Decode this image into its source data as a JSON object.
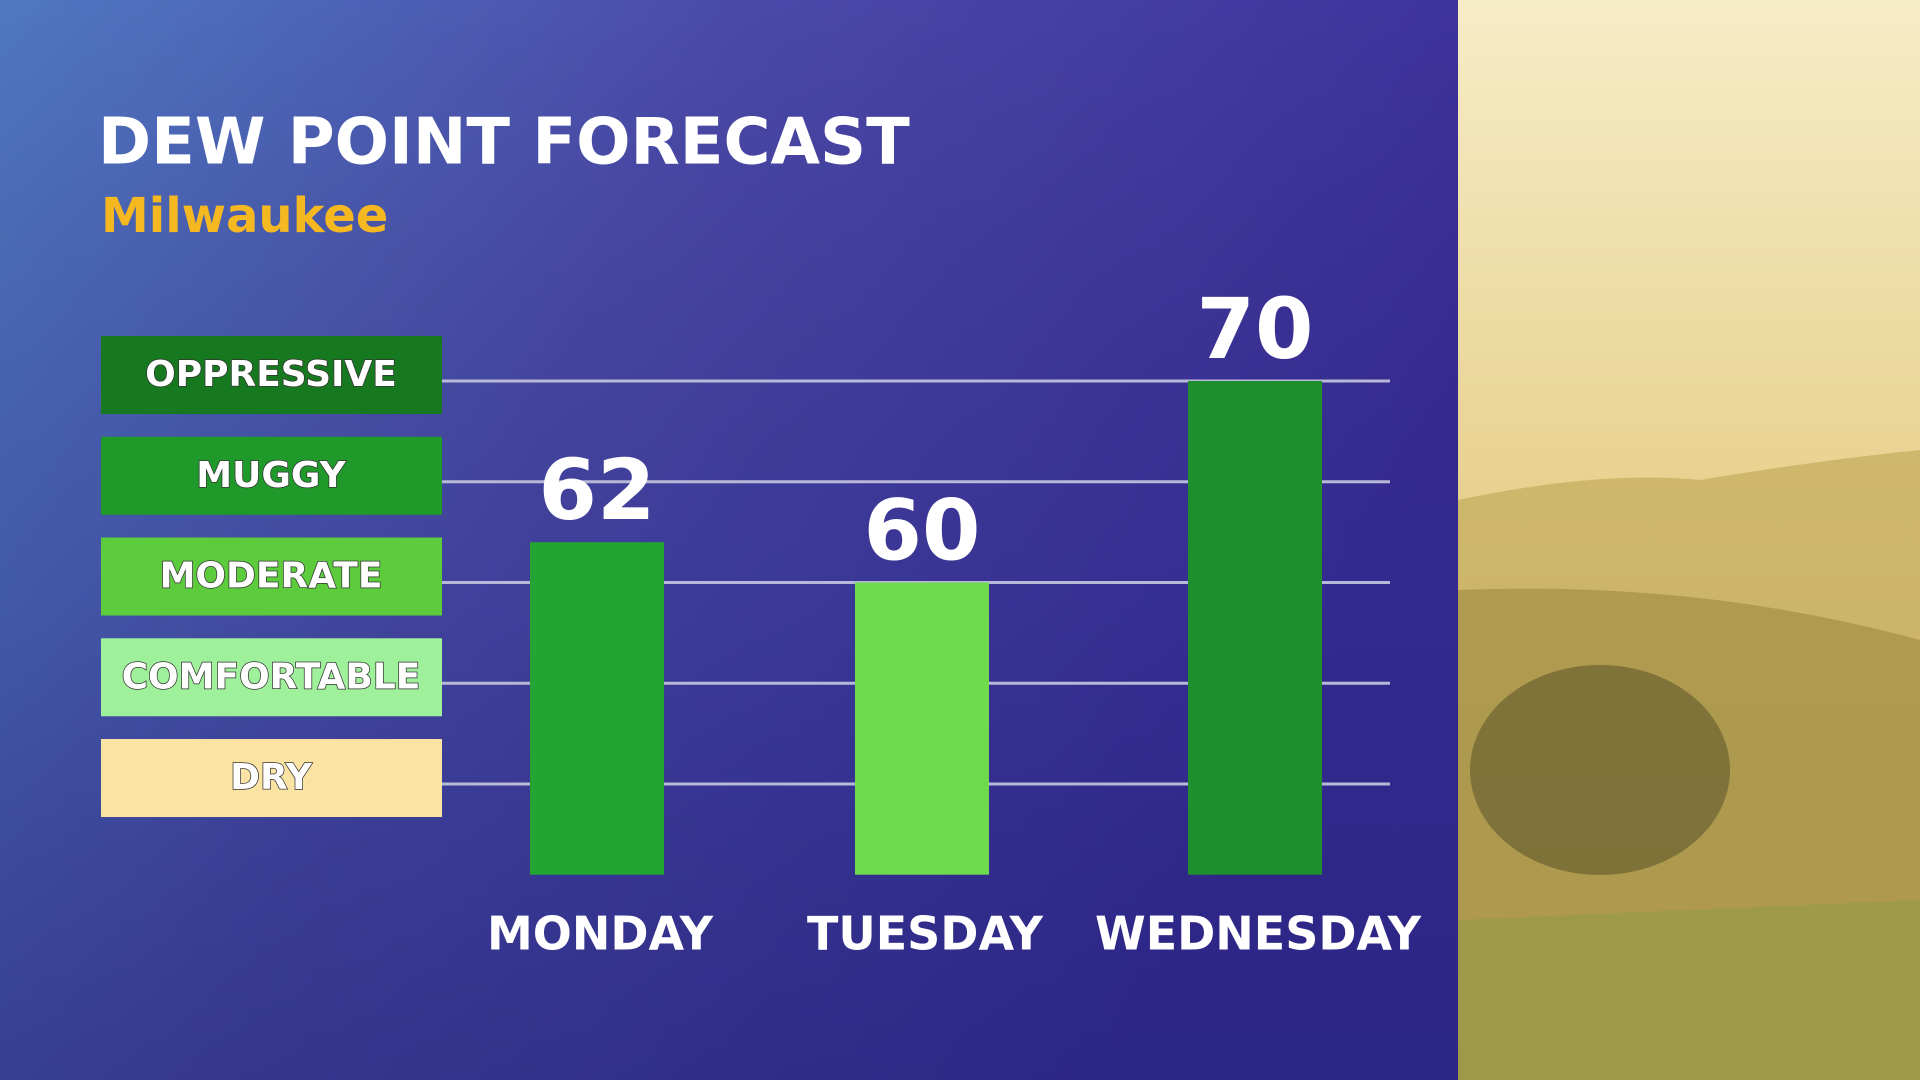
{
  "chart_data": {
    "type": "bar",
    "title": "DEW POINT FORECAST",
    "subtitle": "Milwaukee",
    "categories": [
      "MONDAY",
      "TUESDAY",
      "WEDNESDAY"
    ],
    "values": [
      62,
      60,
      70
    ],
    "colors": [
      "#23a533",
      "#6ddb4b",
      "#1f8f2d"
    ],
    "ylim": [
      45.5,
      72
    ],
    "yticks": [
      {
        "value": 70,
        "label": "OPPRESSIVE"
      },
      {
        "value": 65,
        "label": "MUGGY"
      },
      {
        "value": 60,
        "label": "MODERATE"
      },
      {
        "value": 55,
        "label": "COMFORTABLE"
      },
      {
        "value": 50,
        "label": "DRY"
      }
    ],
    "ytick_colors": [
      "#16781f",
      "#1f9a2a",
      "#5ccc3c",
      "#9ef09a",
      "#fbe3a3"
    ],
    "grid": true
  }
}
